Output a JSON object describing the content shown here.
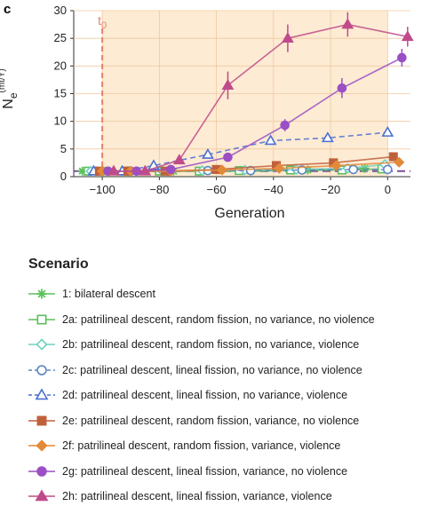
{
  "chart_data": {
    "type": "line",
    "panel_label": "c",
    "xlabel": "Generation",
    "ylabel": "N_e^(mt/Y)",
    "xlim": [
      -110,
      8
    ],
    "ylim": [
      0,
      30
    ],
    "xticks": [
      -100,
      -80,
      -60,
      -40,
      -20,
      0
    ],
    "yticks": [
      0,
      5,
      10,
      15,
      20,
      25,
      30
    ],
    "shaded_region": [
      -100,
      0
    ],
    "shade_color": "#fdebd3",
    "annotation": {
      "text": "t0",
      "x": -100,
      "color": "#e8806a"
    },
    "reference_line": {
      "y": 1,
      "color": "#7b4f96",
      "style": "dashed"
    },
    "legend_title": "Scenario",
    "series": [
      {
        "name": "1: bilateral descent",
        "marker": "asterisk",
        "color": "#5cc25c",
        "dashed": false,
        "x": [
          -107,
          -99,
          -88,
          -75,
          -66,
          -48,
          -28,
          -8
        ],
        "y": [
          1,
          1,
          1,
          1,
          1,
          1,
          1.2,
          1.5
        ],
        "err": [
          0.3,
          0.3,
          0.3,
          0.3,
          0.3,
          0.3,
          0.3,
          0.4
        ]
      },
      {
        "name": "2a: patrilineal descent, random fission, no variance, no violence",
        "marker": "square-open",
        "color": "#5cbd5c",
        "dashed": false,
        "x": [
          -105,
          -92,
          -80,
          -66,
          -52,
          -34,
          -16,
          -2
        ],
        "y": [
          1,
          1,
          1,
          1,
          1.1,
          1.2,
          1.2,
          1.4
        ],
        "err": [
          0.2,
          0.2,
          0.2,
          0.2,
          0.2,
          0.2,
          0.2,
          0.3
        ]
      },
      {
        "name": "2b: patrilineal descent, random fission, no variance, violence",
        "marker": "diamond-open",
        "color": "#6fd1c1",
        "dashed": false,
        "x": [
          -104,
          -91,
          -79,
          -65,
          -50,
          -32,
          -14,
          -1
        ],
        "y": [
          1,
          1,
          1,
          1.1,
          1.2,
          1.3,
          1.5,
          2.2
        ],
        "err": [
          0.2,
          0.2,
          0.2,
          0.2,
          0.2,
          0.2,
          0.3,
          0.4
        ]
      },
      {
        "name": "2c: patrilineal descent, lineal fission, no variance, no violence",
        "marker": "circle-open",
        "color": "#5b86c2",
        "dashed": true,
        "x": [
          -102,
          -90,
          -77,
          -63,
          -48,
          -30,
          -12,
          0
        ],
        "y": [
          1,
          1,
          1,
          1.1,
          1.1,
          1.2,
          1.3,
          1.3
        ],
        "err": [
          0.2,
          0.2,
          0.2,
          0.2,
          0.2,
          0.2,
          0.2,
          0.3
        ]
      },
      {
        "name": "2d: patrilineal descent, lineal fission, no variance, violence",
        "marker": "triangle-open",
        "color": "#4a6fd3",
        "dashed": true,
        "x": [
          -103,
          -93,
          -82,
          -63,
          -41,
          -21,
          0
        ],
        "y": [
          1,
          1,
          2,
          4,
          6.5,
          7,
          8
        ],
        "err": [
          0.3,
          0.3,
          0.4,
          0.5,
          0.6,
          0.6,
          0.6
        ]
      },
      {
        "name": "2e: patrilineal descent, random fission, variance, no violence",
        "marker": "square",
        "color": "#c0603b",
        "dashed": false,
        "x": [
          -101,
          -91,
          -78,
          -60,
          -39,
          -19,
          2
        ],
        "y": [
          1,
          1,
          1,
          1.3,
          2,
          2.5,
          3.6
        ],
        "err": [
          0.2,
          0.2,
          0.2,
          0.3,
          0.3,
          0.3,
          0.4
        ]
      },
      {
        "name": "2f: patrilineal descent, random fission, variance, violence",
        "marker": "diamond",
        "color": "#e38a3a",
        "dashed": false,
        "x": [
          -100,
          -90,
          -76,
          -58,
          -38,
          -18,
          4
        ],
        "y": [
          1,
          1,
          1,
          1.2,
          1.5,
          2,
          2.6
        ],
        "err": [
          0.2,
          0.2,
          0.2,
          0.2,
          0.3,
          0.3,
          0.4
        ]
      },
      {
        "name": "2g: patrilineal descent, lineal fission, variance, no violence",
        "marker": "circle",
        "color": "#9b4fc5",
        "dashed": false,
        "x": [
          -98,
          -88,
          -76,
          -56,
          -36,
          -16,
          5
        ],
        "y": [
          1,
          1,
          1.3,
          3.5,
          9.3,
          16,
          21.5
        ],
        "err": [
          0.3,
          0.3,
          0.3,
          0.5,
          1.1,
          1.8,
          1.6
        ]
      },
      {
        "name": "2h: patrilineal descent, lineal fission, variance, violence",
        "marker": "triangle",
        "color": "#c04b8a",
        "dashed": false,
        "x": [
          -96,
          -85,
          -73,
          -56,
          -35,
          -14,
          7
        ],
        "y": [
          1,
          1,
          3,
          16.5,
          25,
          27.5,
          25.3
        ],
        "err": [
          0.3,
          0.3,
          0.7,
          2.5,
          2.5,
          2.2,
          1.8
        ]
      }
    ]
  }
}
